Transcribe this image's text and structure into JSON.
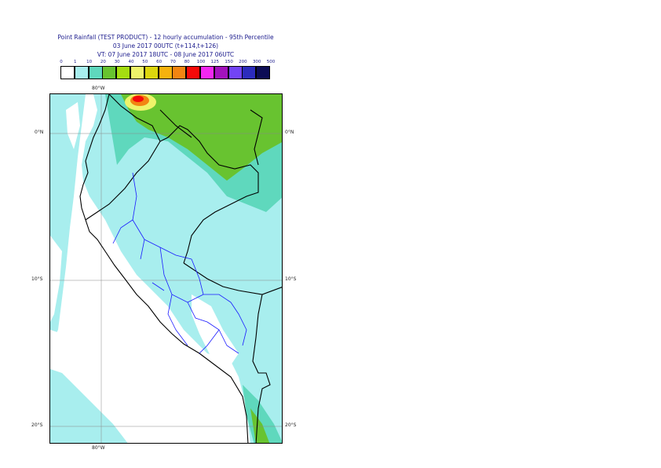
{
  "header": {
    "line1": "Point Rainfall (TEST PRODUCT) - 12 hourly accumulation - 95th Percentile",
    "line2": "03 June 2017 00UTC (t+114,t+126)",
    "line3": "VT: 07 June 2017 18UTC - 08 June 2017 06UTC"
  },
  "legend": {
    "thresholds": [
      "0",
      "1",
      "10",
      "20",
      "30",
      "40",
      "50",
      "60",
      "70",
      "80",
      "100",
      "125",
      "150",
      "200",
      "300",
      "500"
    ],
    "colors": [
      "#ffffff",
      "#a8eeee",
      "#5fd8bd",
      "#68c330",
      "#a5dd10",
      "#eef36a",
      "#ddd60e",
      "#f6b20e",
      "#f28512",
      "#f60a0a",
      "#f227f2",
      "#a312bd",
      "#7244f5",
      "#2c2cbd",
      "#0c0c55"
    ]
  },
  "map": {
    "top_lon_label": "80°W",
    "bottom_lon_label": "80°W",
    "lat_labels": [
      "0°N",
      "10°S",
      "20°S"
    ]
  }
}
